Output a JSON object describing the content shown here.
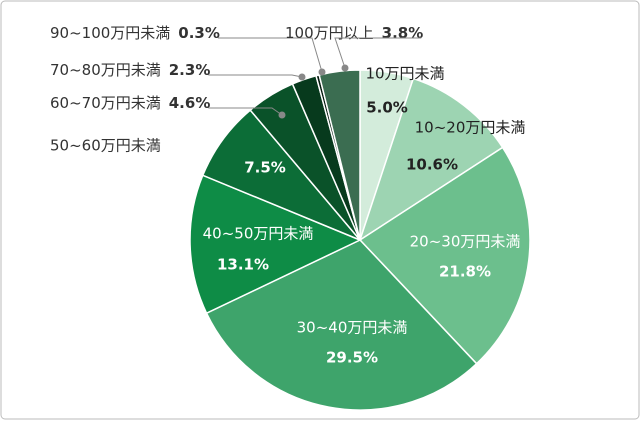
{
  "chart_data": {
    "type": "pie",
    "categories": [
      "10万円未満",
      "10~20万円未満",
      "20~30万円未満",
      "30~40万円未満",
      "40~50万円未満",
      "50~60万円未満",
      "60~70万円未満",
      "70~80万円未満",
      "90~100万円未満",
      "100万円以上"
    ],
    "values": [
      5.0,
      10.6,
      21.8,
      29.5,
      13.1,
      7.5,
      4.6,
      2.3,
      0.3,
      3.8
    ],
    "value_labels": [
      "5.0%",
      "10.6%",
      "21.8%",
      "29.5%",
      "13.1%",
      "7.5%",
      "4.6%",
      "2.3%",
      "0.3%",
      "3.8%"
    ],
    "colors": [
      "#d3ecdb",
      "#9dd4b2",
      "#6cbf8d",
      "#3ea46b",
      "#0e8c46",
      "#0c6d37",
      "#0a5229",
      "#073a1d",
      "#02190c",
      "#3b6d51"
    ]
  }
}
